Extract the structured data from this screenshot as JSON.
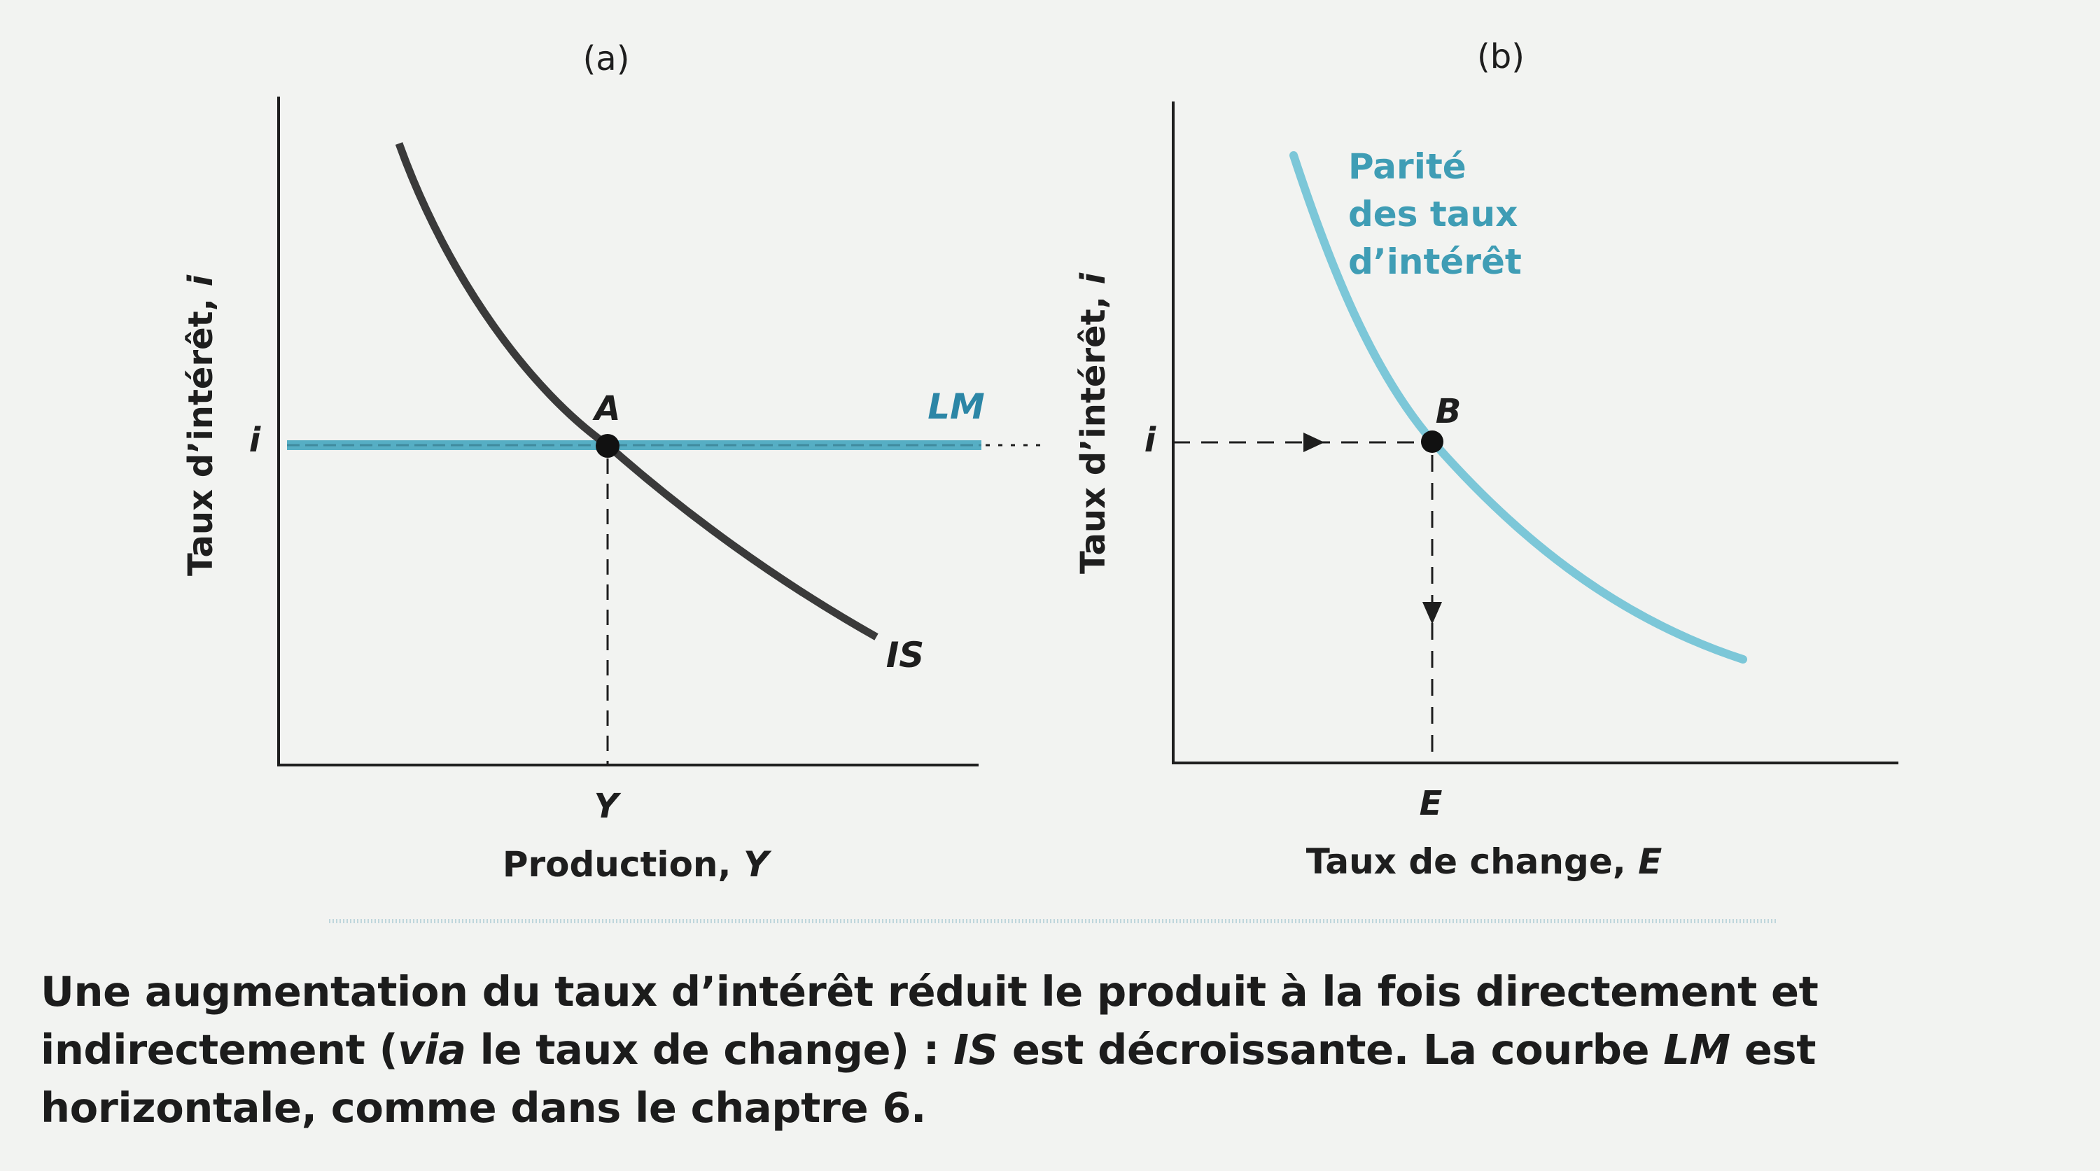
{
  "colors": {
    "background": "#f2f3f1",
    "axis": "#1e1e1e",
    "is_curve": "#3a3a3a",
    "lm_line": "#56aec4",
    "parity_curve": "#7cc7d8",
    "label_blue": "#2c86a6",
    "parity_label": "#3f9db5"
  },
  "chart_data": [
    {
      "type": "line",
      "panel_label": "(a)",
      "xlabel": "Production,",
      "xlabel_symbol": "Y",
      "ylabel": "Taux d’intérêt,",
      "ylabel_symbol": "i",
      "x_tick": "Y",
      "y_tick": "i",
      "series": [
        {
          "name": "IS",
          "style": "dark",
          "shape": "downward-sloping convex",
          "x": [
            0.18,
            0.3,
            0.42,
            0.47,
            0.6,
            0.72,
            0.85
          ],
          "y": [
            0.93,
            0.72,
            0.55,
            0.49,
            0.37,
            0.29,
            0.2
          ]
        },
        {
          "name": "LM",
          "style": "blue",
          "shape": "horizontal",
          "x": [
            0.0,
            1.0
          ],
          "y": [
            0.49,
            0.49
          ]
        }
      ],
      "points": [
        {
          "label": "A",
          "x": 0.47,
          "y": 0.49
        }
      ],
      "grid": false
    },
    {
      "type": "line",
      "panel_label": "(b)",
      "xlabel": "Taux de change,",
      "xlabel_symbol": "E",
      "ylabel": "Taux d’intérêt,",
      "ylabel_symbol": "i",
      "x_tick": "E",
      "y_tick": "i",
      "series": [
        {
          "name": "Parité des taux d’intérêt",
          "label_lines": [
            "Parité",
            "des taux",
            "d’intérêt"
          ],
          "style": "light-blue",
          "shape": "downward-sloping convex",
          "x": [
            0.17,
            0.26,
            0.36,
            0.5,
            0.66,
            0.82
          ],
          "y": [
            0.92,
            0.72,
            0.49,
            0.33,
            0.22,
            0.16
          ]
        }
      ],
      "points": [
        {
          "label": "B",
          "x": 0.36,
          "y": 0.49
        }
      ],
      "grid": false
    }
  ],
  "caption": {
    "part1": "Une augmentation du taux d’intérêt réduit le produit à la fois directement et indirectement (",
    "part2_italic": "via",
    "part3": " le taux de change) : ",
    "part4_italic": "IS",
    "part5": " est décroissante. La courbe ",
    "part6_italic": "LM",
    "part7": " est horizontale, comme dans le chaptre 6."
  }
}
